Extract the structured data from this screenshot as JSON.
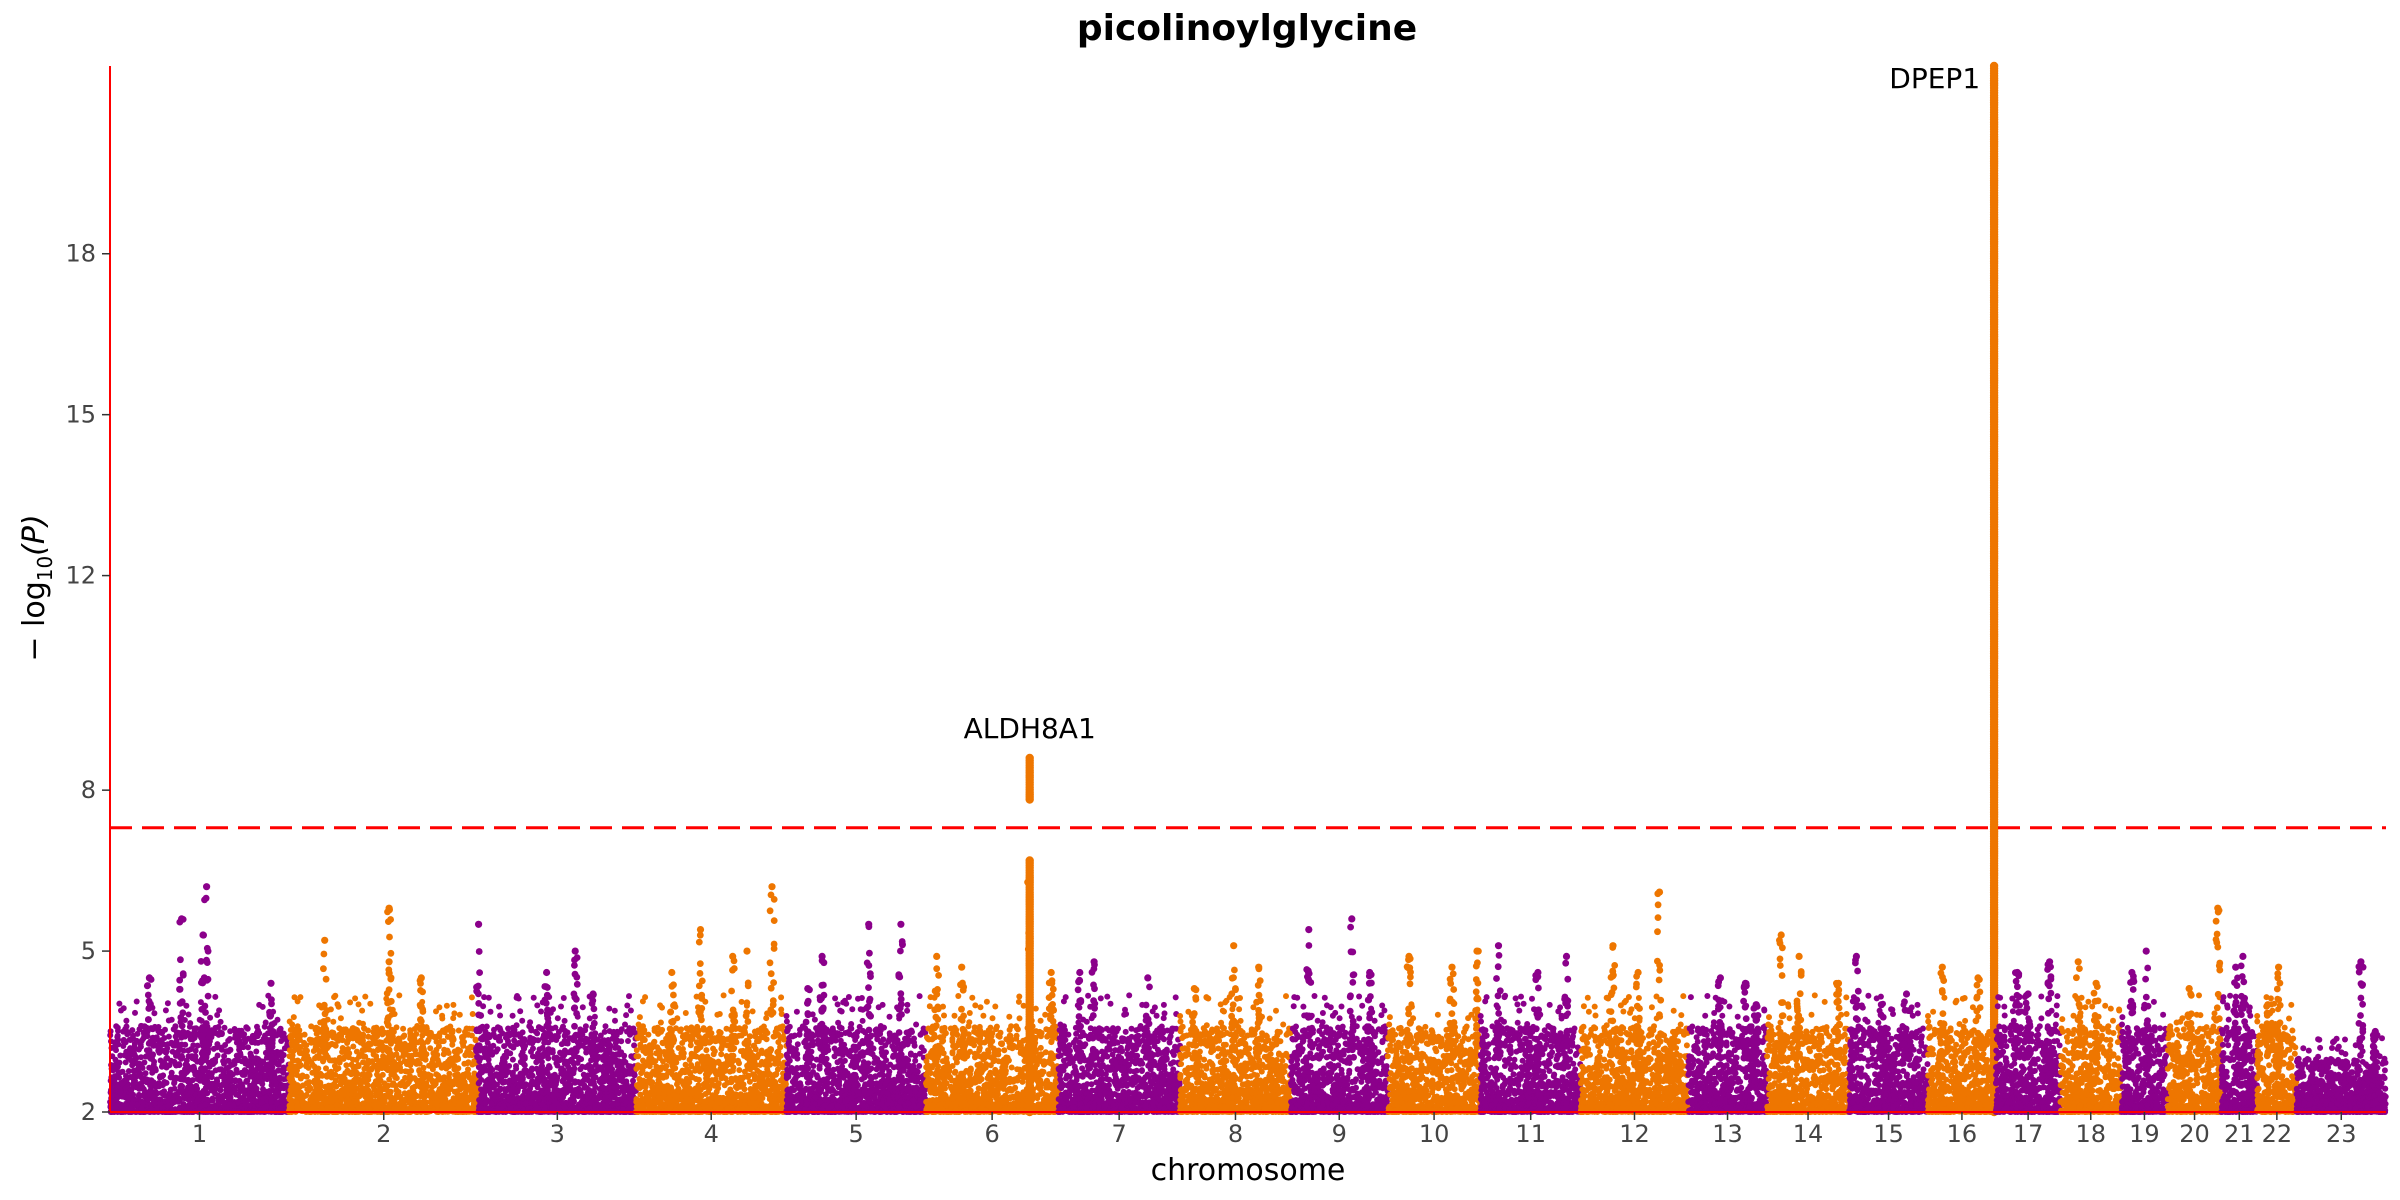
{
  "chart_data": {
    "type": "scatter",
    "title": "picolinoylglycine",
    "xlabel": "chromosome",
    "ylabel_main": "− log",
    "ylabel_sub": "10",
    "ylabel_var": "(P)",
    "ylim": [
      2,
      21.5
    ],
    "yticks": [
      2,
      5,
      8,
      12,
      15,
      18
    ],
    "threshold": 7.3,
    "colors": {
      "odd": "#8B008B",
      "even": "#EE7600",
      "axis": "#FF0000",
      "threshold": "#FF0000"
    },
    "chromosomes": [
      {
        "label": "1",
        "start": 0.0,
        "end": 5.0,
        "peaks": [
          [
            2.7,
            6.2
          ],
          [
            2.6,
            5.3
          ],
          [
            2.0,
            5.6
          ],
          [
            1.1,
            4.5
          ],
          [
            4.5,
            4.4
          ]
        ]
      },
      {
        "label": "2",
        "start": 5.0,
        "end": 10.3,
        "peaks": [
          [
            2.8,
            5.8
          ],
          [
            2.8,
            4.8
          ],
          [
            1.0,
            5.2
          ],
          [
            3.7,
            4.5
          ]
        ]
      },
      {
        "label": "3",
        "start": 10.3,
        "end": 14.7,
        "peaks": [
          [
            0.0,
            5.5
          ],
          [
            2.7,
            5.0
          ],
          [
            1.9,
            4.6
          ],
          [
            3.2,
            4.2
          ]
        ]
      },
      {
        "label": "4",
        "start": 14.7,
        "end": 18.9,
        "peaks": [
          [
            1.0,
            4.6
          ],
          [
            1.8,
            5.4
          ],
          [
            3.8,
            6.2
          ],
          [
            3.1,
            5.0
          ],
          [
            2.7,
            4.9
          ]
        ]
      },
      {
        "label": "5",
        "start": 18.9,
        "end": 22.8,
        "peaks": [
          [
            1.0,
            4.9
          ],
          [
            2.3,
            5.5
          ],
          [
            3.2,
            5.5
          ],
          [
            0.6,
            4.3
          ]
        ]
      },
      {
        "label": "6",
        "start": 22.8,
        "end": 26.5,
        "peaks": [
          [
            0.3,
            4.9
          ],
          [
            2.9,
            6.6
          ],
          [
            1.0,
            4.7
          ],
          [
            3.5,
            4.6
          ]
        ],
        "hit": {
          "x": 2.9,
          "y": 8.6,
          "label": "ALDH8A1"
        }
      },
      {
        "label": "7",
        "start": 26.5,
        "end": 29.9,
        "peaks": [
          [
            1.0,
            4.8
          ],
          [
            2.5,
            4.5
          ],
          [
            0.6,
            4.6
          ]
        ]
      },
      {
        "label": "8",
        "start": 29.9,
        "end": 33.0,
        "peaks": [
          [
            1.5,
            5.1
          ],
          [
            2.2,
            4.7
          ],
          [
            0.4,
            4.3
          ]
        ]
      },
      {
        "label": "9",
        "start": 33.0,
        "end": 35.7,
        "peaks": [
          [
            0.5,
            5.4
          ],
          [
            1.7,
            5.6
          ],
          [
            2.2,
            4.6
          ]
        ]
      },
      {
        "label": "10",
        "start": 35.7,
        "end": 38.3,
        "peaks": [
          [
            0.6,
            4.9
          ],
          [
            2.5,
            5.0
          ],
          [
            1.8,
            4.7
          ]
        ]
      },
      {
        "label": "11",
        "start": 38.3,
        "end": 41.1,
        "peaks": [
          [
            0.5,
            5.1
          ],
          [
            2.4,
            4.9
          ],
          [
            1.6,
            4.6
          ]
        ]
      },
      {
        "label": "12",
        "start": 41.1,
        "end": 44.1,
        "peaks": [
          [
            0.9,
            5.1
          ],
          [
            2.2,
            6.1
          ],
          [
            1.6,
            4.6
          ]
        ]
      },
      {
        "label": "13",
        "start": 44.1,
        "end": 46.3,
        "peaks": [
          [
            0.9,
            4.5
          ],
          [
            1.6,
            4.4
          ],
          [
            1.9,
            4.0
          ]
        ]
      },
      {
        "label": "14",
        "start": 46.3,
        "end": 48.6,
        "peaks": [
          [
            0.4,
            5.3
          ],
          [
            0.9,
            4.9
          ],
          [
            2.0,
            4.4
          ]
        ]
      },
      {
        "label": "15",
        "start": 48.6,
        "end": 50.8,
        "peaks": [
          [
            0.2,
            4.9
          ],
          [
            1.6,
            4.2
          ],
          [
            0.9,
            4.0
          ]
        ]
      },
      {
        "label": "16",
        "start": 50.8,
        "end": 52.7,
        "peaks": [
          [
            0.4,
            4.7
          ],
          [
            1.4,
            4.5
          ]
        ],
        "hit": {
          "x": 1.85,
          "y": 21.5,
          "label": "DPEP1"
        }
      },
      {
        "label": "17",
        "start": 52.7,
        "end": 54.5,
        "peaks": [
          [
            0.6,
            4.6
          ],
          [
            1.5,
            4.8
          ],
          [
            0.9,
            4.2
          ]
        ]
      },
      {
        "label": "18",
        "start": 54.5,
        "end": 56.2,
        "peaks": [
          [
            0.5,
            4.8
          ],
          [
            1.0,
            4.4
          ]
        ]
      },
      {
        "label": "19",
        "start": 56.2,
        "end": 57.5,
        "peaks": [
          [
            0.7,
            5.0
          ],
          [
            0.3,
            4.6
          ]
        ]
      },
      {
        "label": "20",
        "start": 57.5,
        "end": 59.0,
        "peaks": [
          [
            1.4,
            5.8
          ],
          [
            0.6,
            4.3
          ]
        ]
      },
      {
        "label": "21",
        "start": 59.0,
        "end": 60.0,
        "peaks": [
          [
            0.4,
            4.7
          ],
          [
            0.6,
            4.9
          ]
        ]
      },
      {
        "label": "22",
        "start": 60.0,
        "end": 61.1,
        "peaks": [
          [
            0.6,
            4.7
          ],
          [
            0.3,
            4.0
          ]
        ]
      },
      {
        "label": "23",
        "start": 61.1,
        "end": 63.6,
        "peaks": [
          [
            1.8,
            4.8
          ],
          [
            2.2,
            3.5
          ]
        ],
        "low": true
      }
    ]
  }
}
